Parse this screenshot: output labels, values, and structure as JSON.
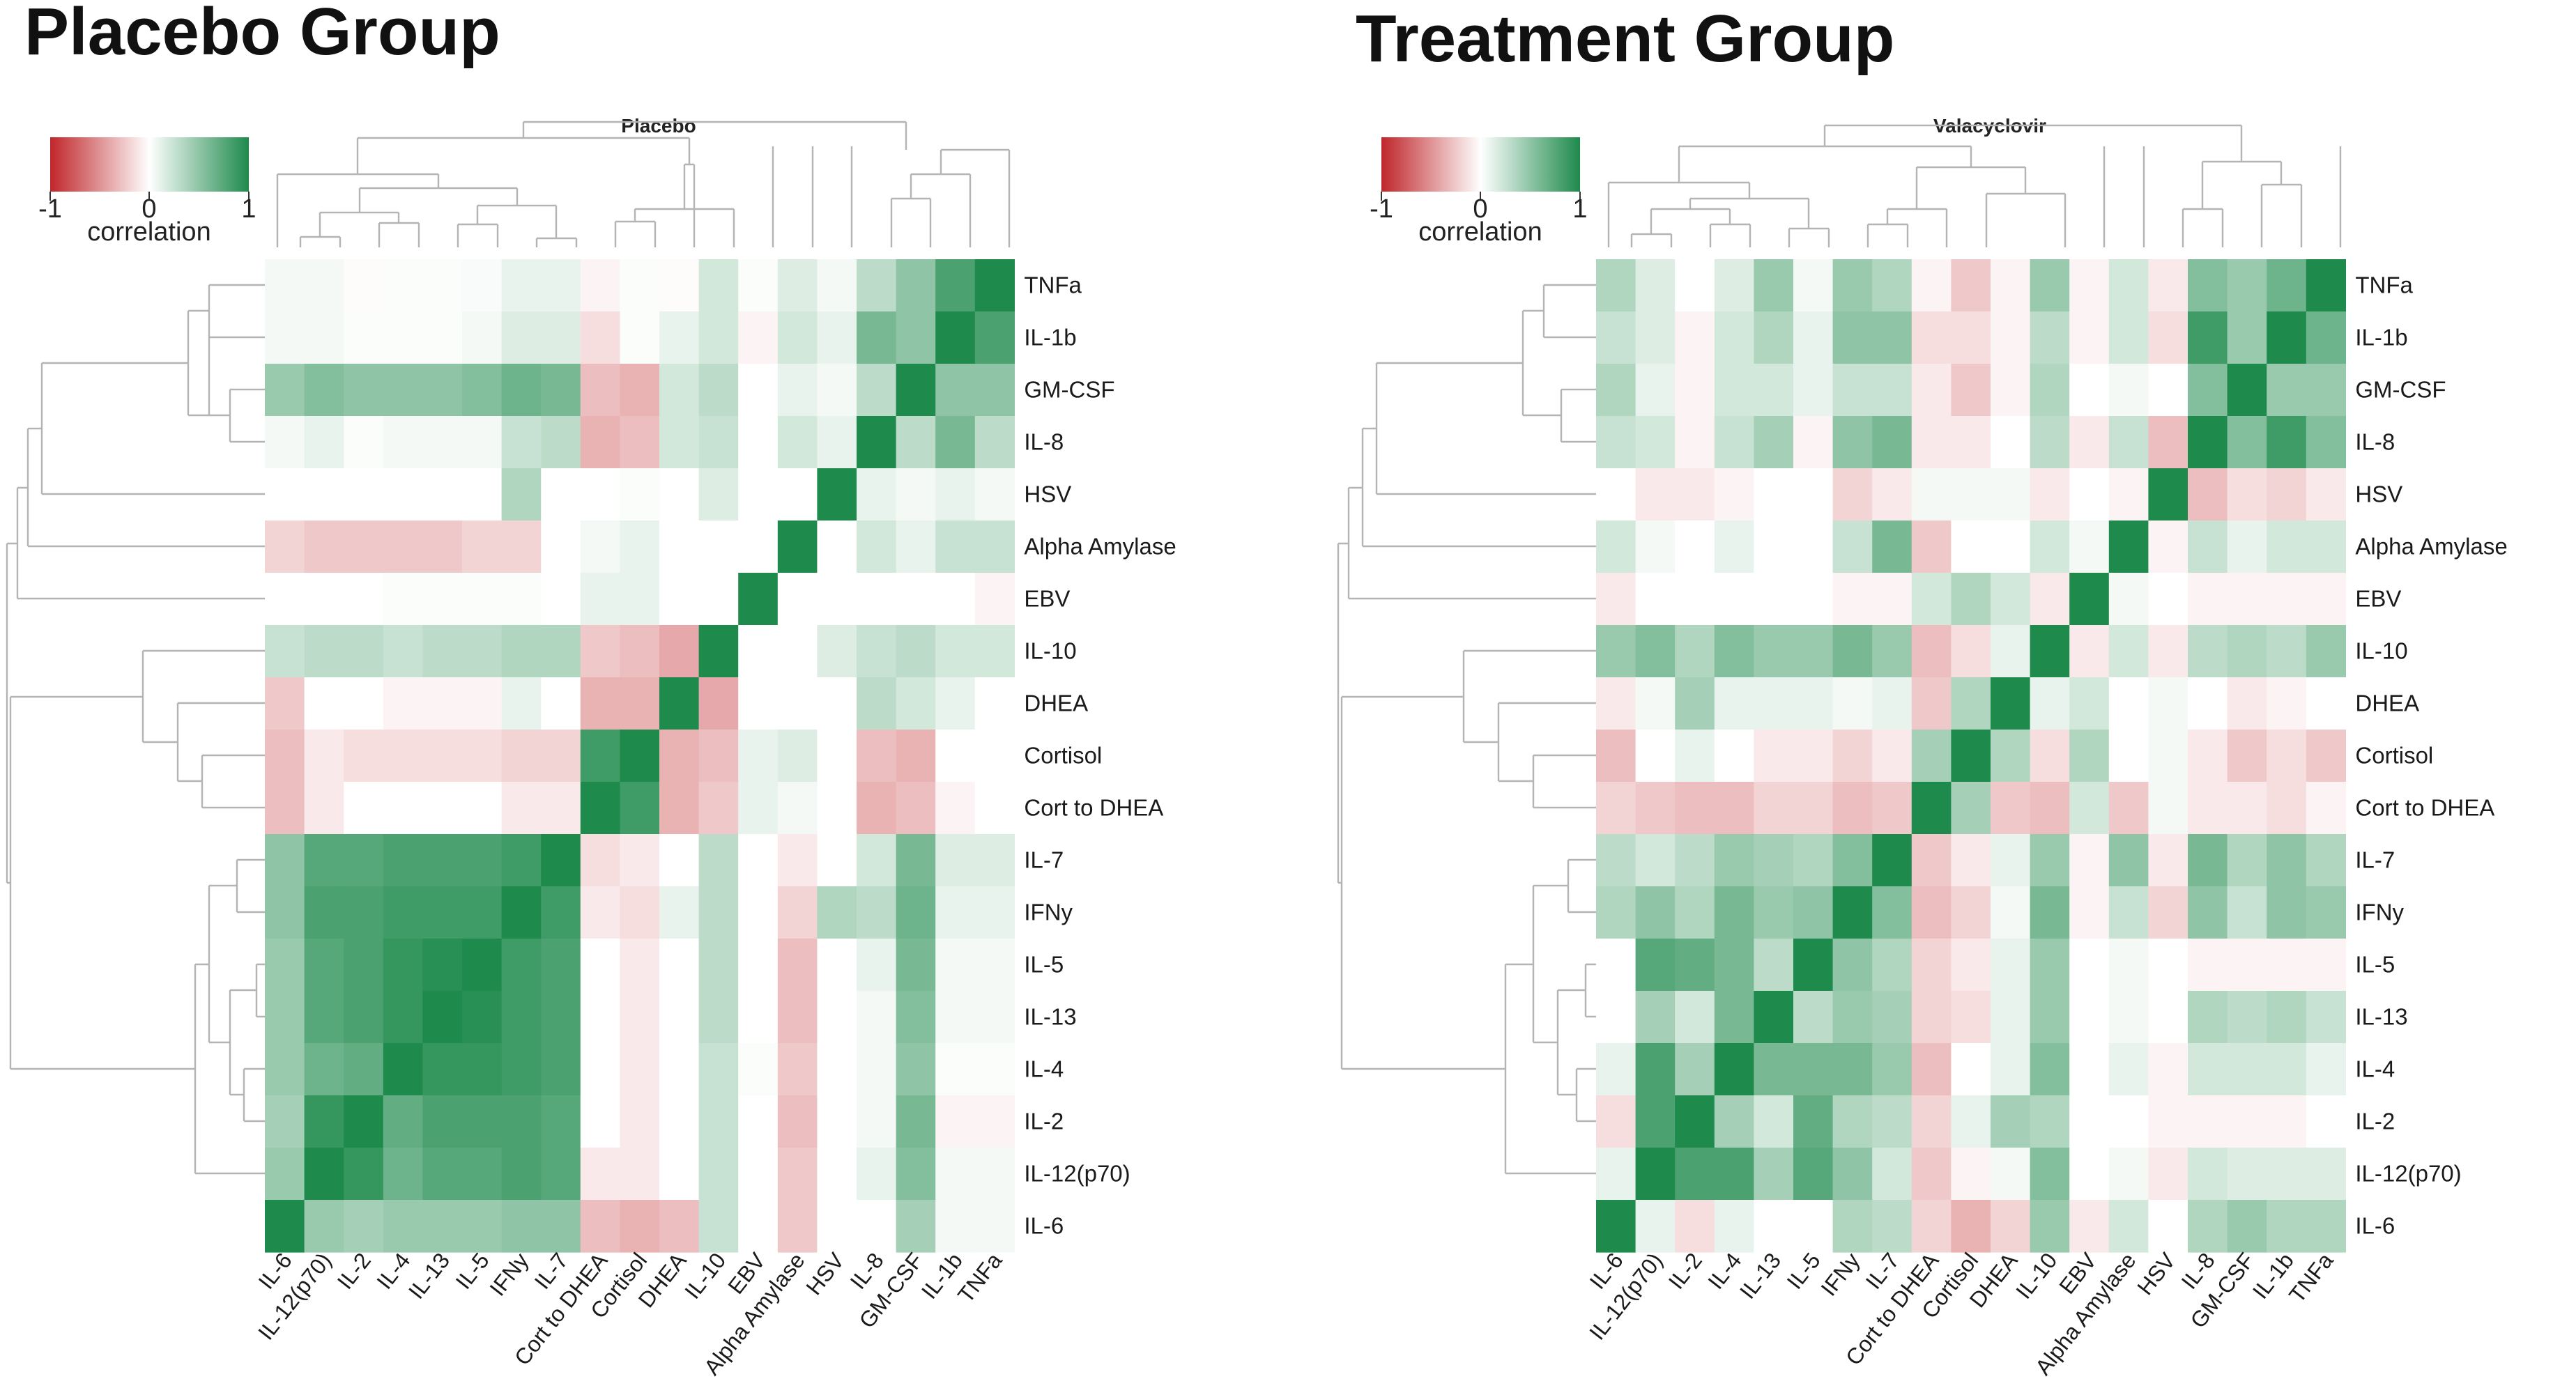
{
  "chart_data": [
    {
      "type": "heatmap",
      "group_title": "Placebo Group",
      "title": "Placebo",
      "rows": [
        "TNFa",
        "IL-1b",
        "GM-CSF",
        "IL-8",
        "HSV",
        "Alpha Amylase",
        "EBV",
        "IL-10",
        "DHEA",
        "Cortisol",
        "Cort to DHEA",
        "IL-7",
        "IFNy",
        "IL-5",
        "IL-13",
        "IL-4",
        "IL-2",
        "IL-12(p70)",
        "IL-6"
      ],
      "columns": [
        "IL-6",
        "IL-12(p70)",
        "IL-2",
        "IL-4",
        "IL-13",
        "IL-5",
        "IFNy",
        "IL-7",
        "Cort to DHEA",
        "Cortisol",
        "DHEA",
        "IL-10",
        "EBV",
        "Alpha Amylase",
        "HSV",
        "IL-8",
        "GM-CSF",
        "IL-1b",
        "TNFa"
      ],
      "values": [
        [
          0.05,
          0.05,
          -0.02,
          0.02,
          0.02,
          0.03,
          0.1,
          0.1,
          -0.05,
          0.02,
          -0.02,
          0.2,
          0.02,
          0.15,
          0.05,
          0.3,
          0.5,
          0.8,
          1
        ],
        [
          0.05,
          0.05,
          0.02,
          0.02,
          0.02,
          0.05,
          0.15,
          0.15,
          -0.15,
          0.02,
          0.1,
          0.2,
          -0.05,
          0.2,
          0.1,
          0.6,
          0.5,
          1,
          0.8
        ],
        [
          0.45,
          0.55,
          0.5,
          0.5,
          0.5,
          0.55,
          0.65,
          0.6,
          -0.3,
          -0.35,
          0.2,
          0.3,
          0,
          0.1,
          0.05,
          0.3,
          1,
          0.5,
          0.5
        ],
        [
          0.05,
          0.1,
          0.02,
          0.05,
          0.05,
          0.05,
          0.25,
          0.3,
          -0.35,
          -0.3,
          0.2,
          0.25,
          0,
          0.2,
          0.1,
          1,
          0.3,
          0.6,
          0.3
        ],
        [
          0,
          0,
          0,
          0,
          0,
          0,
          0.35,
          0,
          0,
          0.02,
          0,
          0.15,
          0,
          0,
          1,
          0.1,
          0.05,
          0.1,
          0.05
        ],
        [
          -0.2,
          -0.25,
          -0.25,
          -0.25,
          -0.25,
          -0.2,
          -0.2,
          0,
          0.05,
          0.1,
          0,
          0,
          0,
          1,
          0,
          0.2,
          0.1,
          0.25,
          0.25
        ],
        [
          0,
          0,
          0,
          0.02,
          0.02,
          0.02,
          0.02,
          0,
          0.1,
          0.1,
          0,
          0,
          1,
          0,
          0,
          0,
          0,
          0,
          -0.05
        ],
        [
          0.25,
          0.3,
          0.3,
          0.25,
          0.3,
          0.3,
          0.35,
          0.35,
          -0.25,
          -0.3,
          -0.4,
          1,
          0,
          0,
          0.15,
          0.25,
          0.3,
          0.2,
          0.2
        ],
        [
          -0.25,
          0,
          0,
          -0.05,
          -0.05,
          -0.05,
          0.1,
          0,
          -0.35,
          -0.35,
          1,
          -0.4,
          0,
          0,
          0,
          0.3,
          0.2,
          0.1,
          0
        ],
        [
          -0.3,
          -0.1,
          -0.15,
          -0.15,
          -0.15,
          -0.15,
          -0.2,
          -0.2,
          0.85,
          1,
          -0.35,
          -0.3,
          0.1,
          0.15,
          0,
          -0.3,
          -0.35,
          0,
          0
        ],
        [
          -0.3,
          -0.1,
          0,
          0,
          0,
          0,
          -0.1,
          -0.1,
          1,
          0.85,
          -0.35,
          -0.25,
          0.1,
          0.05,
          0,
          -0.35,
          -0.3,
          -0.05,
          0
        ],
        [
          0.5,
          0.75,
          0.75,
          0.8,
          0.8,
          0.8,
          0.85,
          1,
          -0.15,
          -0.1,
          0,
          0.3,
          0,
          -0.1,
          0,
          0.2,
          0.6,
          0.15,
          0.15
        ],
        [
          0.5,
          0.8,
          0.8,
          0.85,
          0.85,
          0.85,
          1,
          0.85,
          -0.1,
          -0.15,
          0.1,
          0.3,
          0,
          -0.2,
          0.35,
          0.3,
          0.65,
          0.1,
          0.1
        ],
        [
          0.45,
          0.75,
          0.8,
          0.9,
          0.95,
          1,
          0.85,
          0.8,
          0,
          -0.1,
          0,
          0.3,
          0,
          -0.3,
          0,
          0.1,
          0.6,
          0.05,
          0.05
        ],
        [
          0.45,
          0.75,
          0.8,
          0.9,
          1,
          0.95,
          0.85,
          0.8,
          0,
          -0.1,
          0,
          0.3,
          0,
          -0.3,
          0,
          0.05,
          0.55,
          0.05,
          0.05
        ],
        [
          0.45,
          0.65,
          0.7,
          1,
          0.9,
          0.9,
          0.85,
          0.8,
          0,
          -0.1,
          0,
          0.25,
          0.02,
          -0.25,
          0,
          0.05,
          0.5,
          0.02,
          0.02
        ],
        [
          0.4,
          0.9,
          1,
          0.7,
          0.8,
          0.8,
          0.8,
          0.75,
          0,
          -0.1,
          0,
          0.25,
          0,
          -0.3,
          0,
          0.05,
          0.6,
          -0.05,
          -0.05
        ],
        [
          0.45,
          1,
          0.9,
          0.65,
          0.75,
          0.75,
          0.8,
          0.75,
          -0.1,
          -0.1,
          0,
          0.25,
          0,
          -0.25,
          0,
          0.1,
          0.55,
          0.05,
          0.05
        ],
        [
          1,
          0.45,
          0.4,
          0.45,
          0.45,
          0.45,
          0.5,
          0.5,
          -0.3,
          -0.35,
          -0.3,
          0.25,
          0,
          -0.25,
          0,
          0,
          0.4,
          0.05,
          0.05
        ]
      ],
      "colorbar": {
        "label": "correlation",
        "ticks": [
          "-1",
          "0",
          "1"
        ],
        "min_color": "#c0262a",
        "mid_color": "#ffffff",
        "max_color": "#1e8a4c"
      }
    },
    {
      "type": "heatmap",
      "group_title": "Treatment Group",
      "title": "Valacyclovir",
      "rows": [
        "TNFa",
        "IL-1b",
        "GM-CSF",
        "IL-8",
        "HSV",
        "Alpha Amylase",
        "EBV",
        "IL-10",
        "DHEA",
        "Cortisol",
        "Cort to DHEA",
        "IL-7",
        "IFNy",
        "IL-5",
        "IL-13",
        "IL-4",
        "IL-2",
        "IL-12(p70)",
        "IL-6"
      ],
      "columns": [
        "IL-6",
        "IL-12(p70)",
        "IL-2",
        "IL-4",
        "IL-13",
        "IL-5",
        "IFNy",
        "IL-7",
        "Cort to DHEA",
        "Cortisol",
        "DHEA",
        "IL-10",
        "EBV",
        "Alpha Amylase",
        "HSV",
        "IL-8",
        "GM-CSF",
        "IL-1b",
        "TNFa"
      ],
      "values": [
        [
          0.35,
          0.15,
          0,
          0.15,
          0.45,
          0.05,
          0.45,
          0.35,
          -0.05,
          -0.25,
          -0.05,
          0.45,
          -0.05,
          0.2,
          -0.1,
          0.55,
          0.45,
          0.65,
          1
        ],
        [
          0.25,
          0.15,
          -0.05,
          0.2,
          0.35,
          0.1,
          0.5,
          0.5,
          -0.15,
          -0.15,
          -0.05,
          0.3,
          -0.05,
          0.2,
          -0.15,
          0.85,
          0.45,
          1,
          0.65
        ],
        [
          0.35,
          0.1,
          -0.05,
          0.2,
          0.2,
          0.1,
          0.25,
          0.25,
          -0.1,
          -0.25,
          -0.05,
          0.35,
          0,
          0.05,
          0,
          0.55,
          1,
          0.45,
          0.45
        ],
        [
          0.25,
          0.2,
          -0.05,
          0.25,
          0.4,
          -0.05,
          0.5,
          0.6,
          -0.1,
          -0.1,
          0,
          0.3,
          -0.1,
          0.25,
          -0.3,
          1,
          0.55,
          0.85,
          0.55
        ],
        [
          0,
          -0.1,
          -0.1,
          -0.05,
          0,
          0,
          -0.2,
          -0.1,
          0.05,
          0.05,
          0.05,
          -0.1,
          0,
          -0.05,
          1,
          -0.3,
          -0.15,
          -0.2,
          -0.1
        ],
        [
          0.2,
          0.05,
          0,
          0.1,
          0,
          0,
          0.25,
          0.6,
          -0.25,
          0,
          0,
          0.2,
          0.05,
          1,
          -0.05,
          0.25,
          0.1,
          0.2,
          0.2
        ],
        [
          -0.1,
          0,
          0,
          0,
          0,
          0,
          -0.05,
          -0.05,
          0.2,
          0.35,
          0.2,
          -0.1,
          1,
          0.05,
          0,
          -0.05,
          -0.05,
          -0.05,
          -0.05
        ],
        [
          0.45,
          0.55,
          0.35,
          0.55,
          0.45,
          0.45,
          0.6,
          0.45,
          -0.3,
          -0.15,
          0.1,
          1,
          -0.1,
          0.2,
          -0.1,
          0.3,
          0.35,
          0.3,
          0.45
        ],
        [
          -0.1,
          0.05,
          0.4,
          0.1,
          0.1,
          0.1,
          0.05,
          0.1,
          -0.25,
          0.35,
          1,
          0.1,
          0.2,
          0,
          0.05,
          0,
          -0.1,
          -0.05,
          0
        ],
        [
          -0.3,
          0,
          0.1,
          0,
          -0.1,
          -0.1,
          -0.2,
          -0.1,
          0.4,
          1,
          0.35,
          -0.15,
          0.35,
          0,
          0.05,
          -0.1,
          -0.25,
          -0.15,
          -0.25
        ],
        [
          -0.2,
          -0.25,
          -0.3,
          -0.3,
          -0.2,
          -0.2,
          -0.3,
          -0.25,
          1,
          0.4,
          -0.25,
          -0.3,
          0.2,
          -0.25,
          0.05,
          -0.1,
          -0.1,
          -0.15,
          -0.05
        ],
        [
          0.3,
          0.2,
          0.3,
          0.45,
          0.4,
          0.35,
          0.55,
          1,
          -0.25,
          -0.1,
          0.1,
          0.45,
          -0.05,
          0.5,
          -0.1,
          0.6,
          0.35,
          0.5,
          0.35
        ],
        [
          0.35,
          0.5,
          0.35,
          0.6,
          0.45,
          0.5,
          1,
          0.55,
          -0.3,
          -0.2,
          0.05,
          0.6,
          -0.05,
          0.25,
          -0.2,
          0.5,
          0.25,
          0.5,
          0.45
        ],
        [
          0,
          0.75,
          0.7,
          0.6,
          0.3,
          1,
          0.5,
          0.35,
          -0.2,
          -0.1,
          0.1,
          0.45,
          0,
          0.05,
          0,
          -0.05,
          -0.05,
          -0.05,
          -0.05
        ],
        [
          0,
          0.4,
          0.2,
          0.6,
          1,
          0.3,
          0.45,
          0.4,
          -0.2,
          -0.15,
          0.1,
          0.45,
          0,
          0.05,
          0,
          0.35,
          0.3,
          0.35,
          0.25
        ],
        [
          0.1,
          0.8,
          0.4,
          1,
          0.6,
          0.6,
          0.6,
          0.45,
          -0.3,
          0,
          0.1,
          0.55,
          0,
          0.1,
          -0.05,
          0.2,
          0.2,
          0.2,
          0.1
        ],
        [
          -0.15,
          0.8,
          1,
          0.4,
          0.2,
          0.7,
          0.35,
          0.3,
          -0.2,
          0.1,
          0.4,
          0.35,
          0,
          0,
          -0.05,
          -0.05,
          -0.05,
          -0.05,
          0
        ],
        [
          0.1,
          1,
          0.8,
          0.8,
          0.4,
          0.75,
          0.5,
          0.2,
          -0.25,
          -0.05,
          0.05,
          0.55,
          0,
          0.05,
          -0.1,
          0.2,
          0.15,
          0.15,
          0.15
        ],
        [
          1,
          0.1,
          -0.15,
          0.1,
          0,
          0,
          0.35,
          0.3,
          -0.2,
          -0.35,
          -0.2,
          0.45,
          -0.1,
          0.2,
          0,
          0.35,
          0.45,
          0.35,
          0.35
        ]
      ],
      "colorbar": {
        "label": "correlation",
        "ticks": [
          "-1",
          "0",
          "1"
        ],
        "min_color": "#c0262a",
        "mid_color": "#ffffff",
        "max_color": "#1e8a4c"
      }
    }
  ]
}
